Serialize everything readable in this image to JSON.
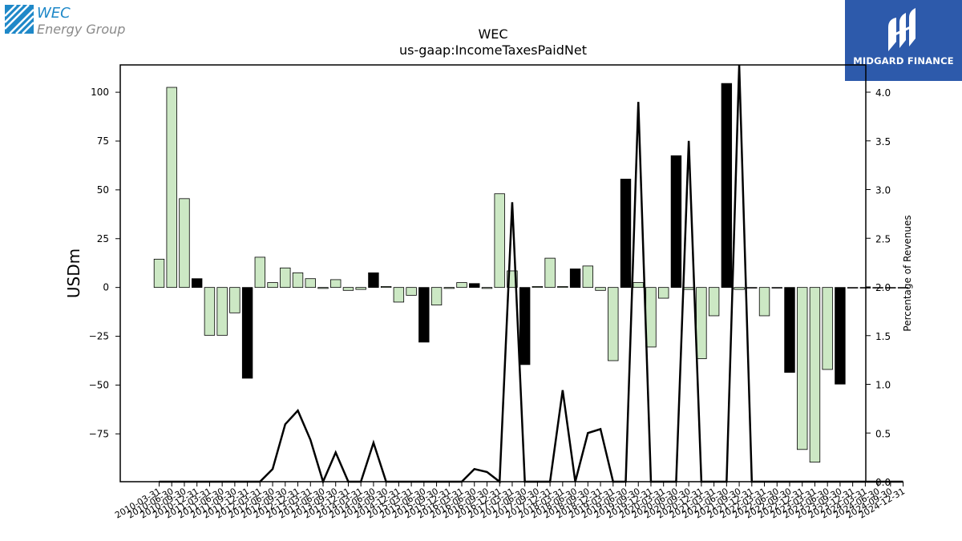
{
  "brand": {
    "name": "WEC",
    "subtitle": "Energy Group",
    "icon": "wec-logo-icon",
    "color": "#1e88c8"
  },
  "publisher": {
    "name": "MIDGARD FINANCE",
    "icon": "midgard-logo-icon",
    "background": "#2d5aab"
  },
  "chart_data": {
    "type": "bar",
    "title": "WEC",
    "subtitle": "us-gaap:IncomeTaxesPaidNet",
    "ylabel": "USDm",
    "y2label": "Percentage of Revenues",
    "ylim": [
      -99.5,
      114
    ],
    "y2lim": [
      0.0,
      4.28
    ],
    "yticks": [
      -75,
      -50,
      -25,
      0,
      25,
      50,
      75,
      100
    ],
    "ytick_labels": [
      "−75",
      "−50",
      "−25",
      "0",
      "25",
      "50",
      "75",
      "100"
    ],
    "y2ticks": [
      0.0,
      0.5,
      1.0,
      1.5,
      2.0,
      2.5,
      3.0,
      3.5,
      4.0
    ],
    "y2tick_labels": [
      "0.0",
      "0.5",
      "1.0",
      "1.5",
      "2.0",
      "2.5",
      "3.0",
      "3.5",
      "4.0"
    ],
    "grid": false,
    "colors": {
      "quarter": "#cce8c4",
      "annual": "#000000",
      "line": "#000000"
    },
    "categories": [
      "2010-03-31",
      "2010-06-30",
      "2010-09-30",
      "2010-12-31",
      "2011-03-31",
      "2011-06-30",
      "2011-09-30",
      "2011-12-31",
      "2012-03-31",
      "2012-06-30",
      "2012-09-30",
      "2012-12-31",
      "2013-03-31",
      "2013-06-30",
      "2013-09-30",
      "2013-12-31",
      "2014-03-31",
      "2014-06-30",
      "2014-09-30",
      "2014-12-31",
      "2015-03-31",
      "2015-06-30",
      "2015-09-30",
      "2015-12-31",
      "2016-03-31",
      "2016-06-30",
      "2016-09-30",
      "2016-12-31",
      "2017-03-31",
      "2017-06-30",
      "2017-09-30",
      "2017-12-31",
      "2018-03-31",
      "2018-06-30",
      "2018-09-30",
      "2018-12-31",
      "2019-03-31",
      "2019-06-30",
      "2019-09-30",
      "2019-12-31",
      "2020-03-31",
      "2020-06-30",
      "2020-09-30",
      "2020-12-31",
      "2021-03-31",
      "2021-06-30",
      "2021-09-30",
      "2021-12-31",
      "2022-03-31",
      "2022-06-30",
      "2022-09-30",
      "2022-12-31",
      "2023-03-31",
      "2023-06-30",
      "2023-09-30",
      "2023-12-31",
      "2024-03-31",
      "2024-06-30",
      "2024-09-30",
      "2024-12-31"
    ],
    "xtick_labels": [
      "2010-03-31",
      "2010-06-30",
      "2010-09-30",
      "2010-12-31",
      "2011-03-31",
      "2011-06-30",
      "2011-09-30",
      "2011-12-31",
      "2012-03-31",
      "2012-06-30",
      "2012-09-30",
      "2012-12-31",
      "2013-03-31",
      "2013-06-30",
      "2013-09-30",
      "2013-12-31",
      "2014-03-31",
      "2014-06-30",
      "2014-09-30",
      "2014-12-31",
      "2015-03-31",
      "2015-06-30",
      "2015-09-30",
      "2015-12-31",
      "2016-03-31",
      "2016-06-30",
      "2016-09-30",
      "2016-12-31",
      "2017-03-31",
      "2017-06-30",
      "2017-09-30",
      "2017-12-31",
      "2018-03-31",
      "2018-06-30",
      "2018-09-30",
      "2018-12-31",
      "2019-03-31",
      "2019-06-30",
      "2019-09-30",
      "2019-12-31",
      "2020-03-31",
      "2020-06-30",
      "2020-09-30",
      "2020-12-31",
      "2021-03-31",
      "2021-06-30",
      "2021-09-30",
      "2021-12-31",
      "2022-03-31",
      "2022-06-30",
      "2022-09-30",
      "2022-12-31",
      "2023-03-31",
      "2023-06-30",
      "2023-09-30",
      "2023-12-31",
      "2024-03-31",
      "2024-06-30",
      "2024-09-30",
      "2024-12-31"
    ],
    "values": [
      14.5,
      102.5,
      45.5,
      4.5,
      -24.5,
      -24.5,
      -13,
      -46.5,
      15.5,
      2.5,
      10,
      7.5,
      4.5,
      -0.5,
      4,
      -1.5,
      -1,
      7.5,
      0.5,
      -7.5,
      -4,
      -28,
      -9,
      -0.5,
      2.5,
      2,
      -0.5,
      48,
      8.5,
      -39.5,
      0.5,
      15,
      0.5,
      9.5,
      11,
      -1.5,
      -37.5,
      55.5,
      2.5,
      -30.5,
      -5.5,
      67.5,
      -1,
      -36.5,
      -14.5,
      104.5,
      -1,
      0,
      -14.5,
      0,
      -43.5,
      -83,
      -89.5,
      -42,
      -49.5,
      0,
      0,
      0,
      0,
      0
    ],
    "annual": [
      false,
      false,
      false,
      true,
      false,
      false,
      false,
      true,
      false,
      false,
      false,
      false,
      false,
      false,
      false,
      false,
      false,
      true,
      false,
      false,
      false,
      true,
      false,
      false,
      false,
      true,
      false,
      false,
      false,
      true,
      false,
      false,
      false,
      true,
      false,
      false,
      false,
      true,
      false,
      false,
      false,
      true,
      false,
      false,
      false,
      true,
      false,
      false,
      false,
      false,
      true,
      false,
      false,
      false,
      true,
      false,
      false,
      false,
      false,
      false
    ],
    "line_values": [
      0.0,
      0.0,
      0.0,
      0.0,
      0.0,
      0.0,
      0.0,
      0.0,
      0.0,
      0.13,
      0.59,
      0.73,
      0.43,
      0.0,
      0.3,
      0.0,
      0.0,
      0.4,
      0.0,
      0.0,
      0.0,
      0.0,
      0.0,
      0.0,
      0.0,
      0.13,
      0.1,
      0.0,
      2.87,
      0.0,
      0.0,
      0.0,
      0.94,
      0.0,
      0.5,
      0.54,
      0.0,
      0.0,
      3.9,
      0.0,
      0.0,
      0.0,
      3.5,
      0.0,
      0.0,
      0.0,
      4.6,
      0.0,
      0.0,
      0.0,
      0.0,
      0.0,
      0.0,
      0.0,
      0.0,
      0.0,
      0.0,
      0.0,
      0.0,
      0.0
    ]
  }
}
